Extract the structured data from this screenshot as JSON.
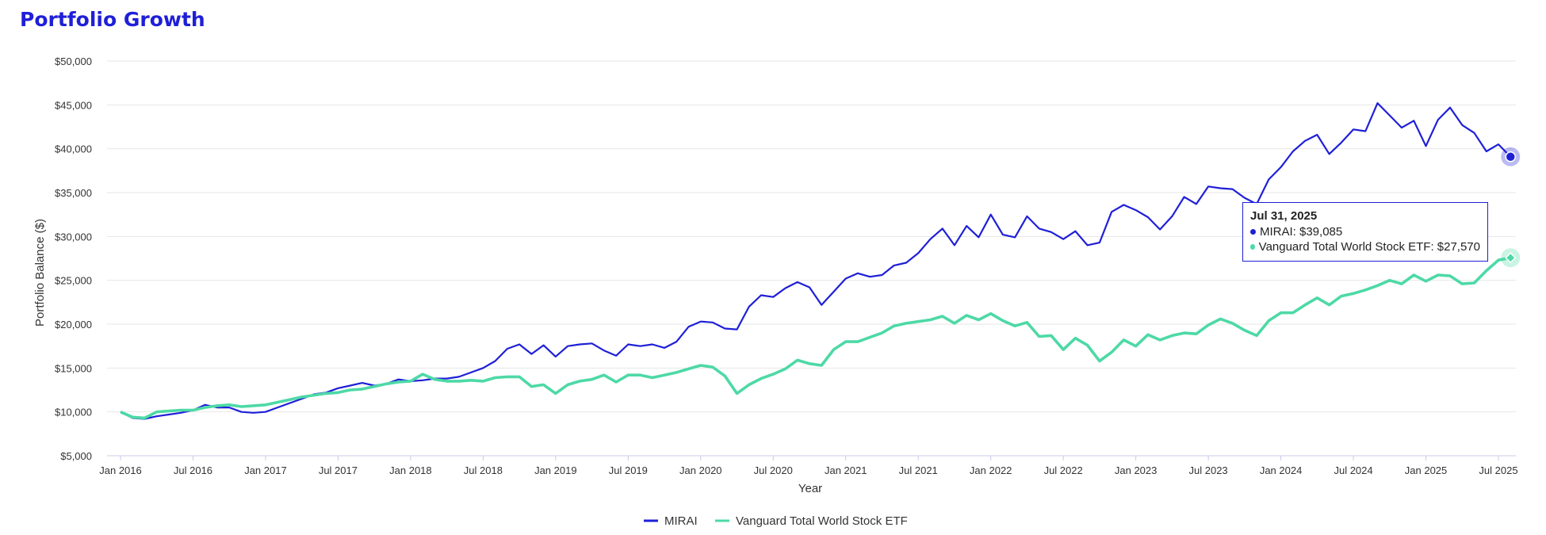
{
  "page": {
    "title": "Portfolio Growth",
    "title_color": "#1f1fd8"
  },
  "chart_data": {
    "type": "line",
    "title": "",
    "xlabel": "Year",
    "ylabel": "Portfolio Balance ($)",
    "ylim": [
      5000,
      50000
    ],
    "y_ticks": [
      5000,
      10000,
      15000,
      20000,
      25000,
      30000,
      35000,
      40000,
      45000,
      50000
    ],
    "y_tick_labels": [
      "$5,000",
      "$10,000",
      "$15,000",
      "$20,000",
      "$25,000",
      "$30,000",
      "$35,000",
      "$40,000",
      "$45,000",
      "$50,000"
    ],
    "x_ticks": [
      "2016-01",
      "2016-07",
      "2017-01",
      "2017-07",
      "2018-01",
      "2018-07",
      "2019-01",
      "2019-07",
      "2020-01",
      "2020-07",
      "2021-01",
      "2021-07",
      "2022-01",
      "2022-07",
      "2023-01",
      "2023-07",
      "2024-01",
      "2024-07",
      "2025-01",
      "2025-07"
    ],
    "x_tick_labels": [
      "Jan 2016",
      "Jul 2016",
      "Jan 2017",
      "Jul 2017",
      "Jan 2018",
      "Jul 2018",
      "Jan 2019",
      "Jul 2019",
      "Jan 2020",
      "Jul 2020",
      "Jan 2021",
      "Jul 2021",
      "Jan 2022",
      "Jul 2022",
      "Jan 2023",
      "Jul 2023",
      "Jan 2024",
      "Jul 2024",
      "Jan 2025",
      "Jul 2025"
    ],
    "x_start": "2016-01",
    "x_end": "2025-07",
    "grid": true,
    "legend_position": "bottom-center",
    "series": [
      {
        "name": "MIRAI",
        "color": "#1f1fd8",
        "values": [
          10000,
          9300,
          9200,
          9500,
          9700,
          9900,
          10200,
          10800,
          10500,
          10500,
          10000,
          9900,
          10000,
          10500,
          11000,
          11500,
          12000,
          12200,
          12700,
          13000,
          13300,
          13000,
          13200,
          13700,
          13500,
          13600,
          13800,
          13800,
          14000,
          14500,
          15000,
          15800,
          17200,
          17700,
          16600,
          17600,
          16300,
          17500,
          17700,
          17800,
          17000,
          16400,
          17700,
          17500,
          17700,
          17300,
          18000,
          19700,
          20300,
          20200,
          19500,
          19400,
          22000,
          23300,
          23100,
          24100,
          24800,
          24200,
          22200,
          23700,
          25200,
          25800,
          25400,
          25600,
          26700,
          27000,
          28100,
          29700,
          30900,
          29000,
          31200,
          29900,
          32500,
          30200,
          29900,
          32300,
          30900,
          30500,
          29700,
          30600,
          29000,
          29300,
          32800,
          33600,
          33000,
          32200,
          30800,
          32300,
          34500,
          33700,
          35700,
          35500,
          35400,
          34400,
          33700,
          36500,
          37900,
          39700,
          40900,
          41600,
          39400,
          40700,
          42200,
          42000,
          45200,
          43800,
          42400,
          43200,
          40300,
          43300,
          44700,
          42700,
          41800,
          39700,
          40500,
          39085
        ]
      },
      {
        "name": "Vanguard Total World Stock ETF",
        "color": "#4dd9a6",
        "values": [
          10000,
          9400,
          9300,
          10000,
          10100,
          10200,
          10200,
          10500,
          10700,
          10800,
          10600,
          10700,
          10800,
          11100,
          11400,
          11700,
          11900,
          12100,
          12200,
          12500,
          12600,
          12900,
          13200,
          13400,
          13500,
          14300,
          13700,
          13500,
          13500,
          13600,
          13500,
          13900,
          14000,
          14000,
          12900,
          13100,
          12100,
          13100,
          13500,
          13700,
          14200,
          13400,
          14200,
          14200,
          13900,
          14200,
          14500,
          14900,
          15300,
          15100,
          14100,
          12100,
          13100,
          13800,
          14300,
          14900,
          15900,
          15500,
          15300,
          17100,
          18000,
          18000,
          18500,
          19000,
          19800,
          20100,
          20300,
          20500,
          20900,
          20100,
          21000,
          20500,
          21200,
          20400,
          19800,
          20200,
          18600,
          18700,
          17100,
          18400,
          17600,
          15800,
          16800,
          18200,
          17500,
          18800,
          18200,
          18700,
          19000,
          18900,
          19900,
          20600,
          20100,
          19300,
          18700,
          20400,
          21300,
          21300,
          22200,
          23000,
          22200,
          23200,
          23500,
          23900,
          24400,
          25000,
          24600,
          25600,
          24900,
          25600,
          25500,
          24600,
          24700,
          26100,
          27300,
          27570
        ]
      }
    ],
    "tooltip": {
      "date": "Jul 31, 2025",
      "rows": [
        "MIRAI: $39,085",
        "Vanguard Total World Stock ETF: $27,570"
      ]
    }
  }
}
